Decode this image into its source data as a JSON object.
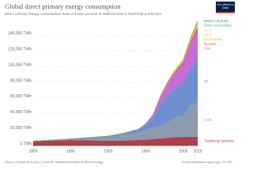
{
  "chart_data": {
    "type": "stacked-area",
    "title": "Global direct primary energy consumption",
    "subtitle": "Direct primary energy consumption does not take account of inefficiencies in fossil fuel production.",
    "logo": "Our World in Data",
    "source": "Source: Vaclav Smil (2017) and BP Statistical Review of World Energy",
    "url": "OurWorldInData.org/energy • CC BY",
    "x": [
      1800,
      1850,
      1900,
      1920,
      1940,
      1950,
      1960,
      1970,
      1980,
      1990,
      2000,
      2010,
      2019
    ],
    "xlim": [
      1800,
      2019
    ],
    "xticks": [
      1800,
      1850,
      1900,
      1950,
      2000,
      2019
    ],
    "ylim": [
      0,
      155000
    ],
    "yticks": [
      {
        "value": 0,
        "label": "0 TWh"
      },
      {
        "value": 20000,
        "label": "20,000 TWh"
      },
      {
        "value": 40000,
        "label": "40,000 TWh"
      },
      {
        "value": 60000,
        "label": "60,000 TWh"
      },
      {
        "value": 80000,
        "label": "80,000 TWh"
      },
      {
        "value": 100000,
        "label": "100,000 TWh"
      },
      {
        "value": 120000,
        "label": "120,000 TWh"
      },
      {
        "value": 140000,
        "label": "140,000 TWh"
      }
    ],
    "grid": true,
    "series": [
      {
        "name": "Traditional biomass",
        "color": "#b13d4d",
        "values": [
          5556,
          7222,
          6111,
          6389,
          7222,
          7500,
          8333,
          9167,
          10000,
          10833,
          11111,
          11111,
          11111
        ]
      },
      {
        "name": "Coal",
        "color": "#8c9bb0",
        "values": [
          97,
          1369,
          5728,
          8000,
          9500,
          12603,
          15442,
          16800,
          20500,
          25800,
          27000,
          41000,
          43849
        ]
      },
      {
        "name": "Oil",
        "color": "#6d8fd0",
        "values": [
          0,
          0,
          181,
          1100,
          3200,
          5444,
          11000,
          26700,
          35500,
          37000,
          42000,
          47000,
          53620
        ]
      },
      {
        "name": "Gas",
        "color": "#c46ed6",
        "values": [
          0,
          0,
          64,
          230,
          750,
          2092,
          4500,
          10000,
          14300,
          19500,
          24000,
          31600,
          39292
        ]
      },
      {
        "name": "Nuclear",
        "color": "#e0595e",
        "values": [
          0,
          0,
          0,
          0,
          0,
          0,
          0,
          80,
          700,
          2000,
          2500,
          2750,
          2800
        ]
      },
      {
        "name": "Hydropower",
        "color": "#e3bf4d",
        "values": [
          0,
          0,
          0,
          60,
          190,
          330,
          680,
          1200,
          1700,
          2150,
          2600,
          3450,
          4222
        ]
      },
      {
        "name": "Wind",
        "color": "#f0cd7a",
        "values": [
          0,
          0,
          0,
          0,
          0,
          0,
          0,
          0,
          0,
          4,
          31,
          342,
          1430
        ]
      },
      {
        "name": "Solar",
        "color": "#f6dc84",
        "values": [
          0,
          0,
          0,
          0,
          0,
          0,
          0,
          0,
          0,
          0,
          1,
          32,
          724
        ]
      },
      {
        "name": "Other renewables",
        "color": "#5fa397",
        "values": [
          0,
          0,
          0,
          0,
          0,
          0,
          0,
          0,
          35,
          100,
          170,
          300,
          700
        ]
      },
      {
        "name": "Modern biofuels",
        "color": "#3d9a62",
        "values": [
          0,
          0,
          0,
          0,
          0,
          0,
          0,
          0,
          0,
          70,
          110,
          550,
          1100
        ]
      }
    ]
  }
}
